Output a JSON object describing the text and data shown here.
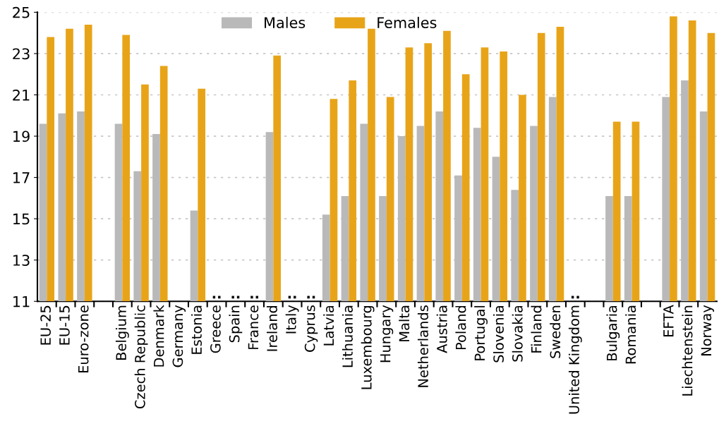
{
  "chart_data": {
    "type": "bar",
    "categories": [
      "EU-25",
      "EU-15",
      "Euro-zone",
      null,
      "Belgium",
      "Czech Republic",
      "Denmark",
      "Germany",
      "Estonia",
      "Greece",
      "Spain",
      "France",
      "Ireland",
      "Italy",
      "Cyprus",
      "Latvia",
      "Lithuania",
      "Luxembourg",
      "Hungary",
      "Malta",
      "Netherlands",
      "Austria",
      "Poland",
      "Portugal",
      "Slovenia",
      "Slovakia",
      "Finland",
      "Sweden",
      "United Kingdom",
      null,
      "Bulgaria",
      "Romania",
      null,
      "EFTA",
      "Liechtenstein",
      "Norway"
    ],
    "series": [
      {
        "name": "Males",
        "color": "#b9b9b9",
        "values": [
          19.6,
          20.1,
          20.2,
          null,
          19.6,
          17.3,
          19.1,
          null,
          15.4,
          null,
          null,
          null,
          19.2,
          null,
          null,
          15.2,
          16.1,
          19.6,
          16.1,
          19.0,
          19.5,
          20.2,
          17.1,
          19.4,
          18.0,
          16.4,
          19.5,
          20.9,
          null,
          null,
          16.1,
          16.1,
          null,
          20.9,
          21.7,
          20.2
        ]
      },
      {
        "name": "Females",
        "color": "#e8a419",
        "values": [
          23.8,
          24.2,
          24.4,
          null,
          23.9,
          21.5,
          22.4,
          null,
          21.3,
          null,
          null,
          null,
          22.9,
          null,
          null,
          20.8,
          21.7,
          24.2,
          20.9,
          23.3,
          23.5,
          24.1,
          22.0,
          23.3,
          23.1,
          21.0,
          24.0,
          24.3,
          null,
          null,
          19.7,
          19.7,
          null,
          24.8,
          24.6,
          24.0
        ]
      }
    ],
    "ylim": [
      11,
      25
    ],
    "yticks": [
      11,
      13,
      15,
      17,
      19,
      21,
      23,
      25
    ],
    "grid": "y",
    "legend": "top",
    "value_labels": [
      null,
      null,
      null,
      null,
      null,
      null,
      null,
      null,
      null,
      "..",
      "..",
      "..",
      null,
      "..",
      "..",
      null,
      null,
      null,
      null,
      null,
      null,
      null,
      null,
      null,
      null,
      null,
      null,
      null,
      "..",
      null,
      null,
      null,
      null,
      null,
      null,
      null
    ]
  }
}
